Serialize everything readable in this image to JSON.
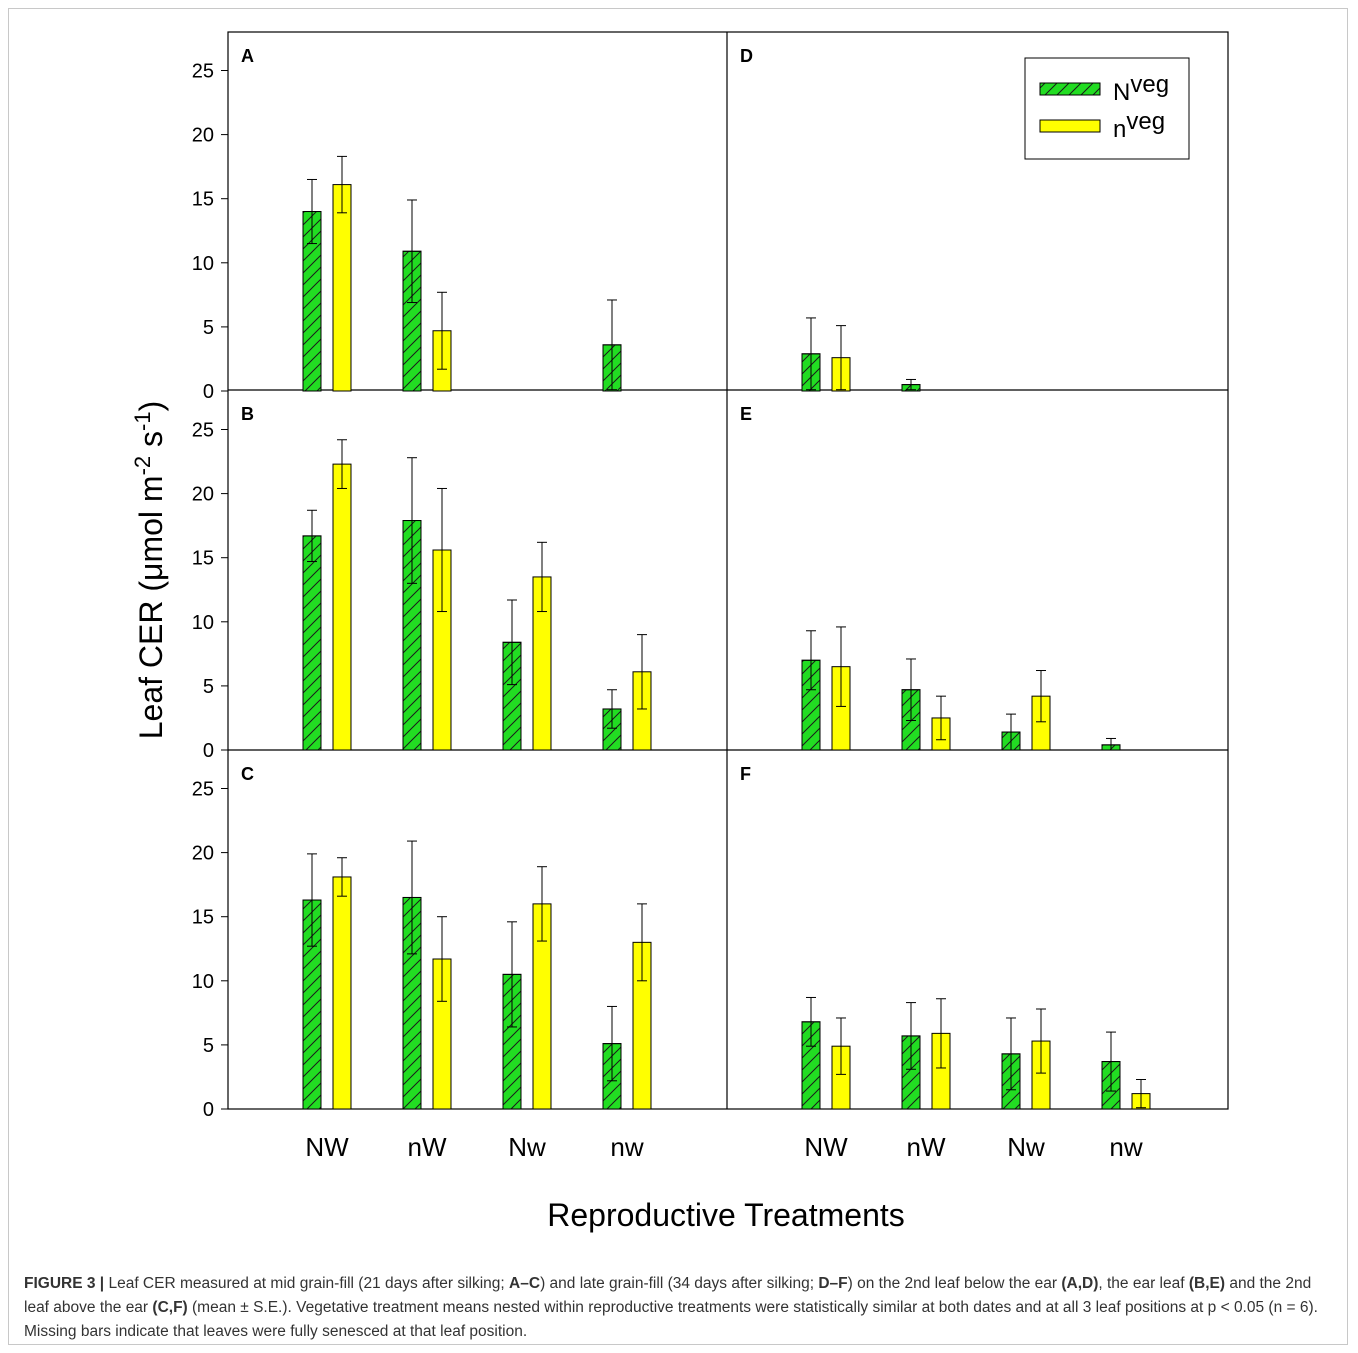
{
  "chart_data": {
    "type": "bar",
    "ylabel": "Leaf CER (μmol m-2 s-1)",
    "xlabel": "Reproductive Treatments",
    "categories": [
      "NW",
      "nW",
      "Nw",
      "nw"
    ],
    "ylim": [
      0,
      28
    ],
    "yticks": [
      0,
      5,
      10,
      15,
      20,
      25
    ],
    "error_bars": "mean ± S.E.",
    "legend": {
      "position": "top-right of panel D",
      "entries": [
        {
          "name": "Nveg",
          "color": "#22dd22",
          "hatch": "diagonal"
        },
        {
          "name": "nveg",
          "color": "#ffff00",
          "hatch": "none"
        }
      ]
    },
    "panels": [
      {
        "label": "A",
        "series": [
          {
            "name": "Nveg",
            "values": [
              14.0,
              10.9,
              null,
              3.6
            ],
            "errors": [
              2.5,
              4.0,
              null,
              3.5
            ]
          },
          {
            "name": "nveg",
            "values": [
              16.1,
              4.7,
              null,
              null
            ],
            "errors": [
              2.2,
              3.0,
              null,
              null
            ]
          }
        ]
      },
      {
        "label": "B",
        "series": [
          {
            "name": "Nveg",
            "values": [
              16.7,
              17.9,
              8.4,
              3.2
            ],
            "errors": [
              2.0,
              4.9,
              3.3,
              1.5
            ]
          },
          {
            "name": "nveg",
            "values": [
              22.3,
              15.6,
              13.5,
              6.1
            ],
            "errors": [
              1.9,
              4.8,
              2.7,
              2.9
            ]
          }
        ]
      },
      {
        "label": "C",
        "series": [
          {
            "name": "Nveg",
            "values": [
              16.3,
              16.5,
              10.5,
              5.1
            ],
            "errors": [
              3.6,
              4.4,
              4.1,
              2.9
            ]
          },
          {
            "name": "nveg",
            "values": [
              18.1,
              11.7,
              16.0,
              13.0
            ],
            "errors": [
              1.5,
              3.3,
              2.9,
              3.0
            ]
          }
        ]
      },
      {
        "label": "D",
        "series": [
          {
            "name": "Nveg",
            "values": [
              2.9,
              0.5,
              null,
              null
            ],
            "errors": [
              2.8,
              0.4,
              null,
              null
            ]
          },
          {
            "name": "nveg",
            "values": [
              2.6,
              null,
              null,
              null
            ],
            "errors": [
              2.5,
              null,
              null,
              null
            ]
          }
        ]
      },
      {
        "label": "E",
        "series": [
          {
            "name": "Nveg",
            "values": [
              7.0,
              4.7,
              1.4,
              0.4
            ],
            "errors": [
              2.3,
              2.4,
              1.4,
              0.5
            ]
          },
          {
            "name": "nveg",
            "values": [
              6.5,
              2.5,
              4.2,
              null
            ],
            "errors": [
              3.1,
              1.7,
              2.0,
              null
            ]
          }
        ]
      },
      {
        "label": "F",
        "series": [
          {
            "name": "Nveg",
            "values": [
              6.8,
              5.7,
              4.3,
              3.7
            ],
            "errors": [
              1.9,
              2.6,
              2.8,
              2.3
            ]
          },
          {
            "name": "nveg",
            "values": [
              4.9,
              5.9,
              5.3,
              1.2
            ],
            "errors": [
              2.2,
              2.7,
              2.5,
              1.1
            ]
          }
        ]
      }
    ]
  },
  "caption": {
    "label": "FIGURE 3 |",
    "parts": [
      {
        "t": " Leaf CER measured at mid grain-fill (21 days after silking; ",
        "b": false
      },
      {
        "t": "A–C",
        "b": true
      },
      {
        "t": ") and late grain-fill (34 days after silking; ",
        "b": false
      },
      {
        "t": "D–F",
        "b": true
      },
      {
        "t": ") on the 2nd leaf below the ear ",
        "b": false
      },
      {
        "t": "(A,D)",
        "b": true
      },
      {
        "t": ", the ear leaf ",
        "b": false
      },
      {
        "t": "(B,E)",
        "b": true
      },
      {
        "t": " and the 2nd leaf above the ear ",
        "b": false
      },
      {
        "t": "(C,F)",
        "b": true
      },
      {
        "t": " (mean ± S.E.). Vegetative treatment means nested within reproductive treatments were statistically similar at both dates and at all 3 leaf positions at p < 0.05 (n = 6). Missing bars indicate that leaves were fully senesced at that leaf position.",
        "b": false
      }
    ]
  }
}
